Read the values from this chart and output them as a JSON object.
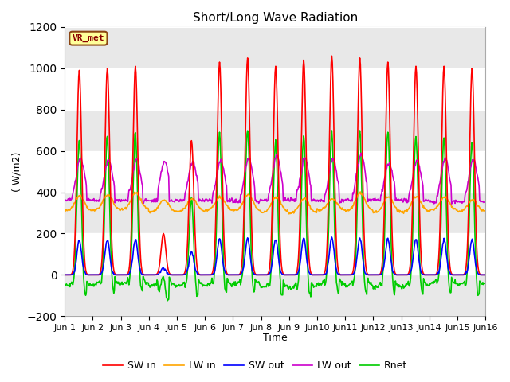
{
  "title": "Short/Long Wave Radiation",
  "ylabel": "( W/m2)",
  "xlabel": "Time",
  "ylim": [
    -200,
    1200
  ],
  "yticks": [
    -200,
    0,
    200,
    400,
    600,
    800,
    1000,
    1200
  ],
  "station_label": "VR_met",
  "colors": {
    "SW_in": "#FF0000",
    "LW_in": "#FFA500",
    "SW_out": "#0000FF",
    "LW_out": "#CC00CC",
    "Rnet": "#00CC00"
  },
  "legend": [
    "SW in",
    "LW in",
    "SW out",
    "LW out",
    "Rnet"
  ],
  "bg_color": "#E8E8E8",
  "n_days": 15,
  "dt_minutes": 30,
  "day_peaks_SW": [
    990,
    1000,
    1010,
    200,
    650,
    1030,
    1050,
    1010,
    1040,
    1060,
    1050,
    1030,
    1010,
    1010,
    1000
  ],
  "line_width": 1.2
}
